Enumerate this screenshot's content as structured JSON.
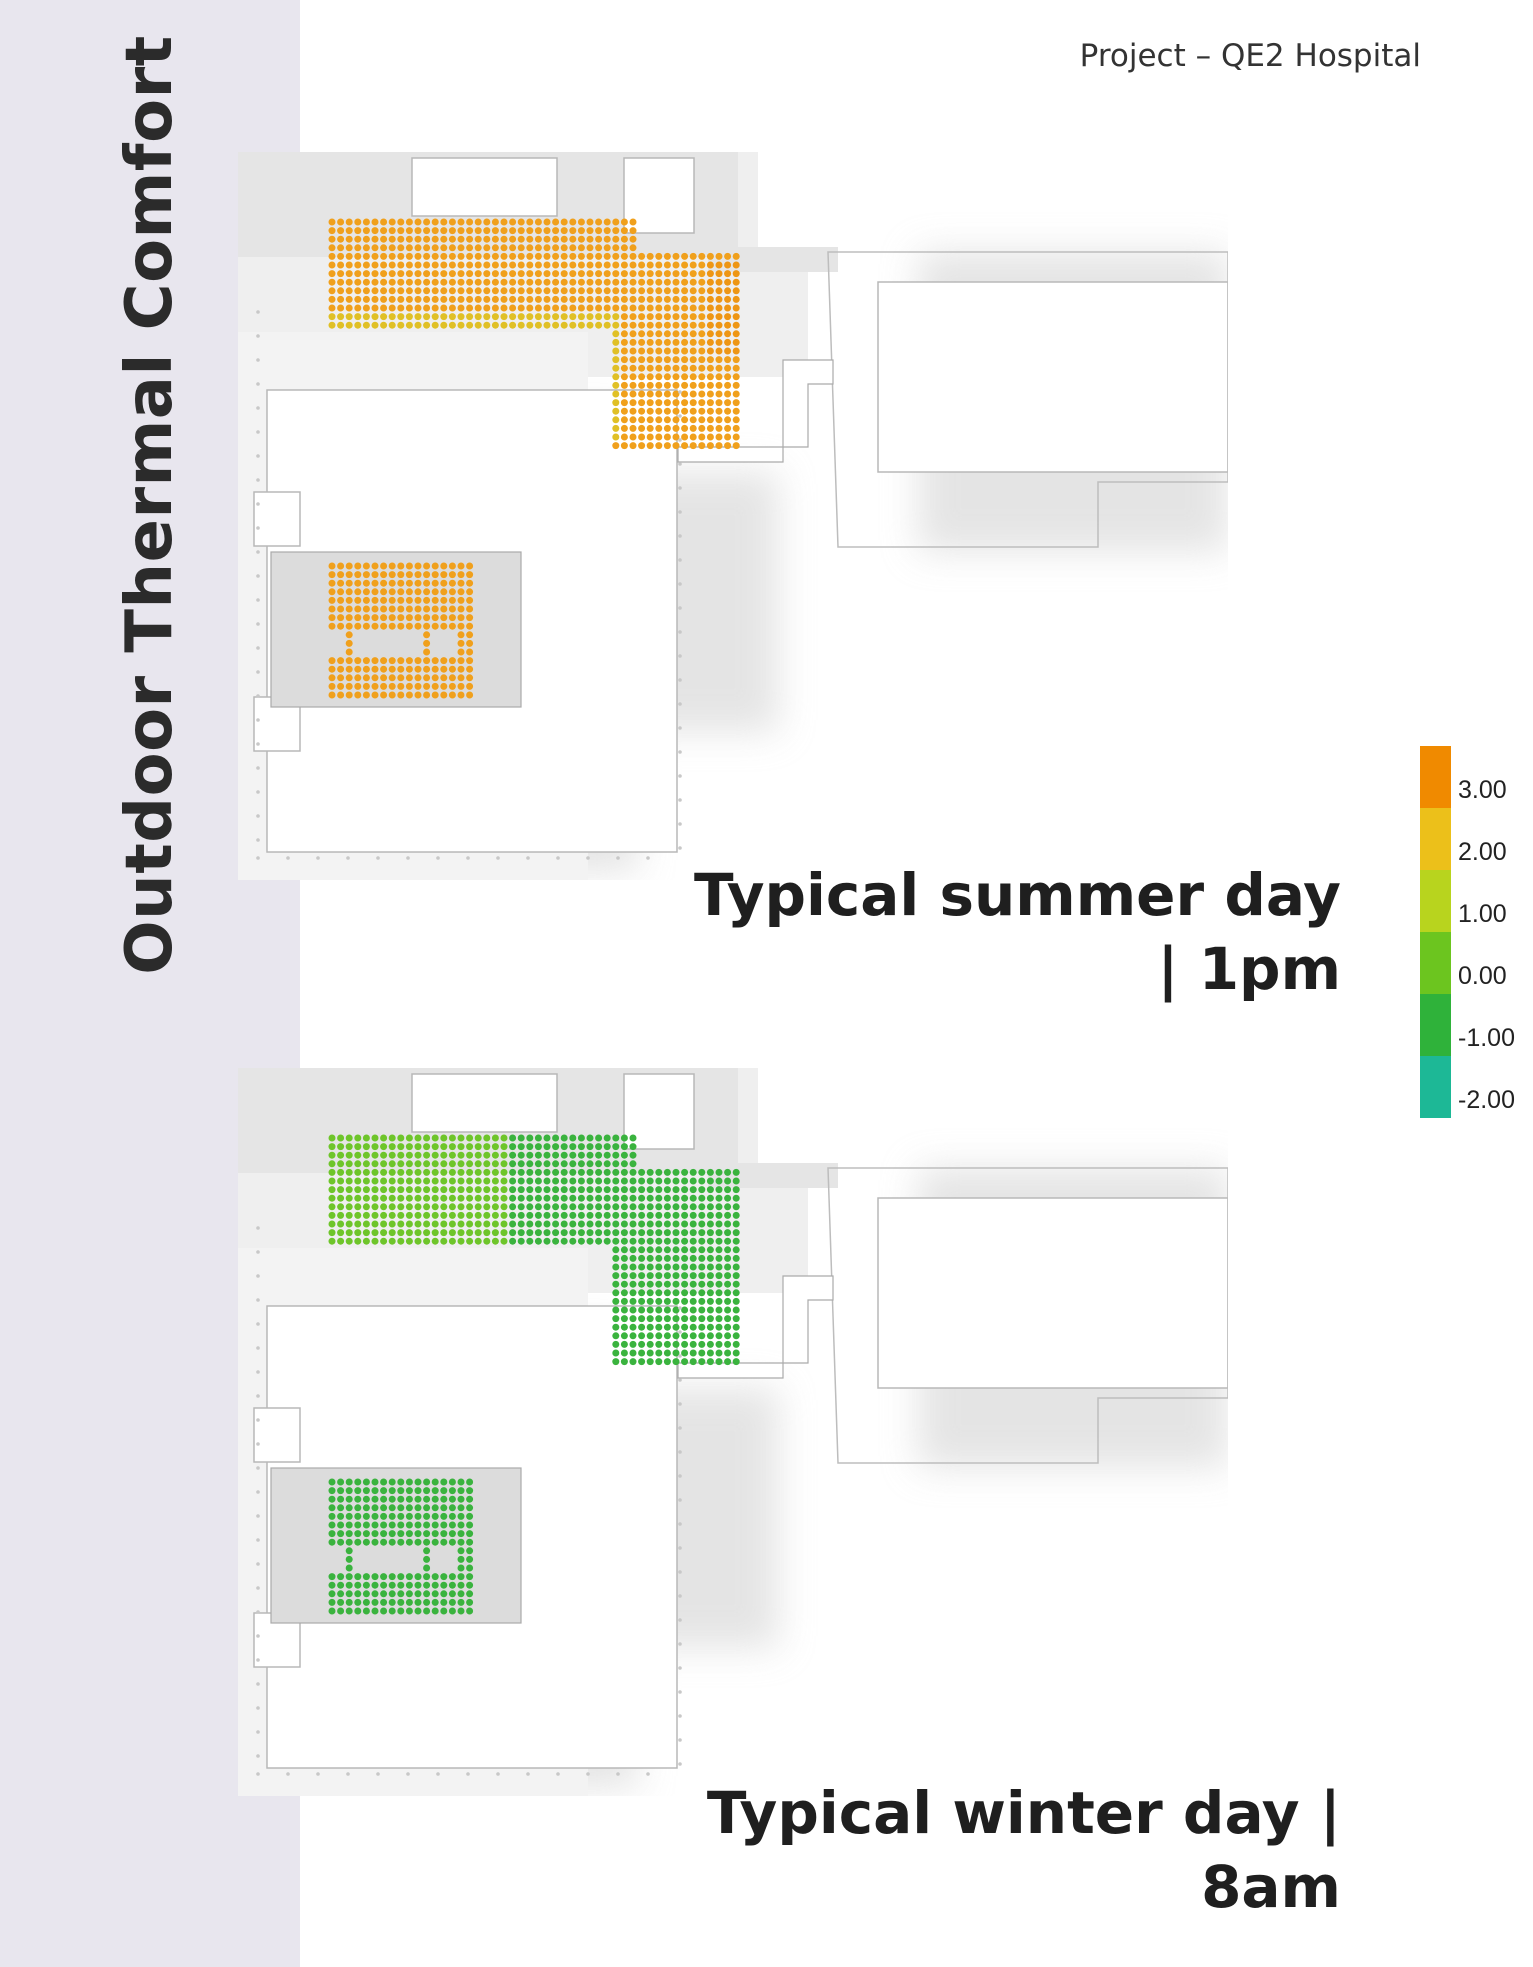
{
  "sidebar": {
    "title": "Outdoor Thermal Comfort"
  },
  "header": {
    "project": "Project – QE2 Hospital"
  },
  "panels": [
    {
      "caption_line1": "Typical summer day",
      "caption_line2": "| 1pm",
      "scheme": "summer"
    },
    {
      "caption_line1": "Typical winter day |",
      "caption_line2": "8am",
      "scheme": "winter"
    }
  ],
  "legend": {
    "scale": [
      {
        "label": "3.00",
        "color": "#f08a00"
      },
      {
        "label": "2.00",
        "color": "#ecc01a"
      },
      {
        "label": "1.00",
        "color": "#b8d41e"
      },
      {
        "label": "0.00",
        "color": "#6cc51f"
      },
      {
        "label": "-1.00",
        "color": "#2fb23a"
      },
      {
        "label": "-2.00",
        "color": "#1db896"
      }
    ]
  },
  "colors": {
    "summer_main": "#f0a01c",
    "summer_warm": "#ee9614",
    "summer_light": "#e0c026",
    "winter_light": "#6ec52a",
    "winter_dark": "#3ab33e",
    "sidebar": "#e8e6ee"
  }
}
